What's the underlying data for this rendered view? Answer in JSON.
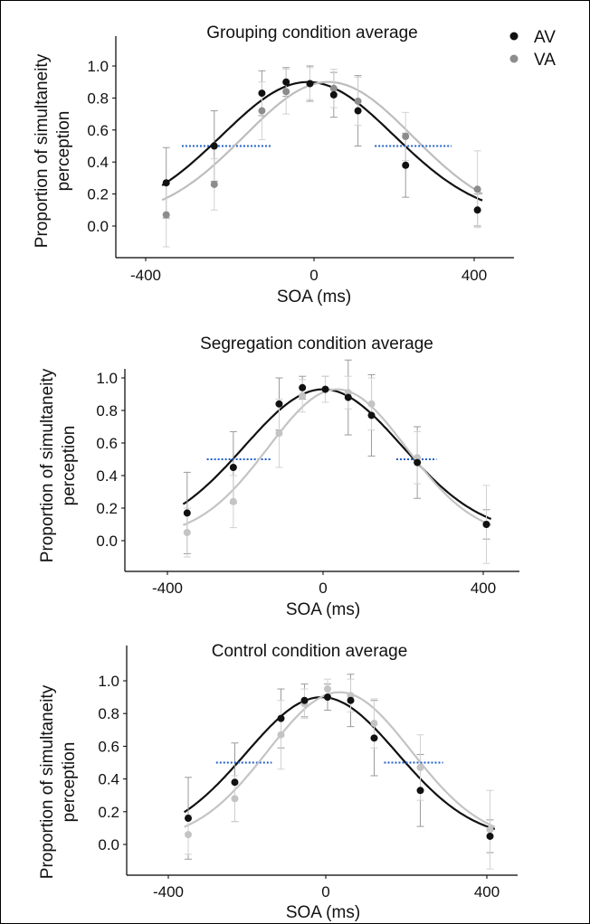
{
  "legend": {
    "items": [
      {
        "label": "AV",
        "color": "#111111"
      },
      {
        "label": "VA",
        "color": "#8c8c8c"
      }
    ]
  },
  "chart_data": [
    {
      "type": "scatter",
      "title": "Grouping condition average",
      "xlabel": "SOA (ms)",
      "ylabel": "Proportion of simultaneity perception",
      "xticks": [
        "-400",
        "0",
        "400"
      ],
      "yticks": [
        "0.0",
        "0.2",
        "0.4",
        "0.6",
        "0.8",
        "1.0"
      ],
      "xlim": [
        -500,
        500
      ],
      "ylim": [
        -0.15,
        1.15
      ],
      "grid": false,
      "legend_position": "top-right",
      "series": [
        {
          "name": "AV",
          "color": "#111111",
          "curve_color": "#111111",
          "x": [
            -350,
            -233,
            -117,
            -58,
            0,
            58,
            117,
            233,
            408
          ],
          "y": [
            0.27,
            0.5,
            0.83,
            0.9,
            0.89,
            0.82,
            0.72,
            0.38,
            0.1
          ],
          "err": [
            0.22,
            0.22,
            0.14,
            0.09,
            0.11,
            0.14,
            0.22,
            0.2,
            0.1
          ],
          "fit": {
            "mu": -5,
            "sigma": 210,
            "a": 0.85,
            "b": 0.05
          },
          "threshold": {
            "y": 0.5,
            "x0": -312,
            "x1": -95
          }
        },
        {
          "name": "VA",
          "color": "#8c8c8c",
          "curve_color": "#bdbdbd",
          "x": [
            -350,
            -233,
            -117,
            -58,
            0,
            58,
            117,
            233,
            408
          ],
          "y": [
            0.07,
            0.26,
            0.72,
            0.84,
            0.89,
            0.86,
            0.78,
            0.56,
            0.23
          ],
          "err": [
            0.2,
            0.16,
            0.18,
            0.14,
            0.1,
            0.12,
            0.15,
            0.15,
            0.24
          ],
          "fit": {
            "mu": 45,
            "sigma": 205,
            "a": 0.86,
            "b": 0.04
          },
          "threshold": {
            "y": 0.5,
            "x0": 158,
            "x1": 345
          }
        }
      ]
    },
    {
      "type": "scatter",
      "title": "Segregation condition average",
      "xlabel": "SOA (ms)",
      "ylabel": "Proportion of simultaneity perception",
      "xticks": [
        "-400",
        "0",
        "400"
      ],
      "yticks": [
        "0.0",
        "0.2",
        "0.4",
        "0.6",
        "0.8",
        "1.0"
      ],
      "xlim": [
        -500,
        500
      ],
      "ylim": [
        -0.15,
        1.15
      ],
      "grid": false,
      "legend_position": "none",
      "series": [
        {
          "name": "AV",
          "color": "#111111",
          "curve_color": "#111111",
          "x": [
            -350,
            -233,
            -117,
            -58,
            0,
            58,
            117,
            233,
            408
          ],
          "y": [
            0.17,
            0.45,
            0.84,
            0.94,
            0.93,
            0.88,
            0.77,
            0.48,
            0.1
          ],
          "err": [
            0.25,
            0.22,
            0.16,
            0.07,
            0.08,
            0.23,
            0.25,
            0.22,
            0.09
          ],
          "fit": {
            "mu": -5,
            "sigma": 200,
            "a": 0.89,
            "b": 0.04
          },
          "threshold": {
            "y": 0.5,
            "x0": -300,
            "x1": -135
          }
        },
        {
          "name": "VA",
          "color": "#c4c4c4",
          "curve_color": "#c4c4c4",
          "x": [
            -350,
            -233,
            -117,
            -58,
            0,
            58,
            117,
            233,
            408
          ],
          "y": [
            0.05,
            0.24,
            0.66,
            0.89,
            0.93,
            0.91,
            0.84,
            0.51,
            0.1
          ],
          "err": [
            0.15,
            0.16,
            0.21,
            0.1,
            0.08,
            0.1,
            0.16,
            0.16,
            0.24
          ],
          "fit": {
            "mu": 30,
            "sigma": 175,
            "a": 0.91,
            "b": 0.02
          },
          "threshold": {
            "y": 0.5,
            "x0": 180,
            "x1": 282
          }
        }
      ]
    },
    {
      "type": "scatter",
      "title": "Control condition average",
      "xlabel": "SOA (ms)",
      "ylabel": "Proportion of simultaneity perception",
      "xticks": [
        "-400",
        "0",
        "400"
      ],
      "yticks": [
        "0.0",
        "0.2",
        "0.4",
        "0.6",
        "0.8",
        "1.0"
      ],
      "xlim": [
        -500,
        500
      ],
      "ylim": [
        -0.15,
        1.15
      ],
      "grid": false,
      "legend_position": "none",
      "series": [
        {
          "name": "AV",
          "color": "#111111",
          "curve_color": "#111111",
          "x": [
            -350,
            -233,
            -117,
            -58,
            0,
            58,
            117,
            233,
            408
          ],
          "y": [
            0.16,
            0.38,
            0.77,
            0.88,
            0.9,
            0.88,
            0.65,
            0.33,
            0.05
          ],
          "err": [
            0.25,
            0.24,
            0.18,
            0.1,
            0.08,
            0.16,
            0.23,
            0.22,
            0.1
          ],
          "fit": {
            "mu": -15,
            "sigma": 190,
            "a": 0.87,
            "b": 0.03
          },
          "threshold": {
            "y": 0.5,
            "x0": -280,
            "x1": -140
          }
        },
        {
          "name": "VA",
          "color": "#c4c4c4",
          "curve_color": "#c4c4c4",
          "x": [
            -350,
            -233,
            -117,
            -58,
            0,
            58,
            117,
            233,
            408
          ],
          "y": [
            0.06,
            0.28,
            0.67,
            0.86,
            0.95,
            0.91,
            0.74,
            0.47,
            0.09
          ],
          "err": [
            0.12,
            0.14,
            0.21,
            0.09,
            0.06,
            0.1,
            0.15,
            0.2,
            0.24
          ],
          "fit": {
            "mu": 30,
            "sigma": 180,
            "a": 0.91,
            "b": 0.02
          },
          "threshold": {
            "y": 0.5,
            "x0": 142,
            "x1": 290
          }
        }
      ]
    }
  ]
}
